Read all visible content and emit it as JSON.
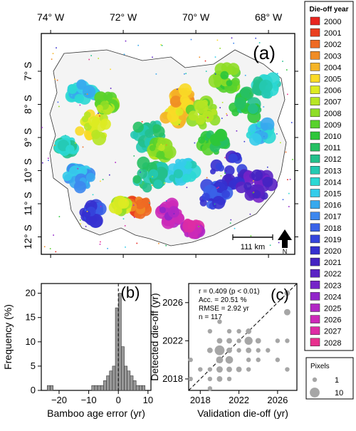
{
  "map": {
    "panel_label": "(a)",
    "lon_ticks": [
      {
        "label": "74° W",
        "lon": -74
      },
      {
        "label": "72° W",
        "lon": -72
      },
      {
        "label": "70° W",
        "lon": -70
      },
      {
        "label": "68° W",
        "lon": -68
      }
    ],
    "lat_ticks": [
      {
        "label": "7° S",
        "lat": -7
      },
      {
        "label": "8° S",
        "lat": -8
      },
      {
        "label": "9° S",
        "lat": -9
      },
      {
        "label": "10° S",
        "lat": -10
      },
      {
        "label": "11° S",
        "lat": -11
      },
      {
        "label": "12° S",
        "lat": -12
      }
    ],
    "scale_bar_label": "111 km",
    "north_label": "N"
  },
  "legend": {
    "title": "Die-off year",
    "entries": [
      {
        "label": "2000",
        "color": "#e8251f"
      },
      {
        "label": "2001",
        "color": "#ea3f1f"
      },
      {
        "label": "2002",
        "color": "#ee6a23"
      },
      {
        "label": "2003",
        "color": "#f08c25"
      },
      {
        "label": "2004",
        "color": "#f5b427"
      },
      {
        "label": "2005",
        "color": "#fada27"
      },
      {
        "label": "2006",
        "color": "#ddeb22"
      },
      {
        "label": "2007",
        "color": "#b7e624"
      },
      {
        "label": "2008",
        "color": "#8fdd26"
      },
      {
        "label": "2009",
        "color": "#58d22c"
      },
      {
        "label": "2010",
        "color": "#2ec63a"
      },
      {
        "label": "2011",
        "color": "#26c063"
      },
      {
        "label": "2012",
        "color": "#24c08c"
      },
      {
        "label": "2013",
        "color": "#25c9b2"
      },
      {
        "label": "2014",
        "color": "#2bd8d4"
      },
      {
        "label": "2015",
        "color": "#35ccea"
      },
      {
        "label": "2016",
        "color": "#37a9ee"
      },
      {
        "label": "2017",
        "color": "#3d87ee"
      },
      {
        "label": "2018",
        "color": "#3a63e8"
      },
      {
        "label": "2019",
        "color": "#3545dc"
      },
      {
        "label": "2020",
        "color": "#3530cf"
      },
      {
        "label": "2021",
        "color": "#4423c2"
      },
      {
        "label": "2022",
        "color": "#5a22c4"
      },
      {
        "label": "2023",
        "color": "#7524c8"
      },
      {
        "label": "2024",
        "color": "#9225ca"
      },
      {
        "label": "2025",
        "color": "#b127c4"
      },
      {
        "label": "2026",
        "color": "#cc2ab8"
      },
      {
        "label": "2027",
        "color": "#de2ca4"
      },
      {
        "label": "2028",
        "color": "#e8308e"
      }
    ]
  },
  "chart_data": [
    {
      "type": "bar",
      "panel": "(b)",
      "xlabel": "Bamboo age error (yr)",
      "ylabel": "Frequency (%)",
      "xlim": [
        -26,
        11
      ],
      "ylim": [
        0,
        22
      ],
      "x_ticks": [
        -20,
        -10,
        0,
        10
      ],
      "x_tick_labels": [
        "−20",
        "−10",
        "0",
        "10"
      ],
      "y_ticks": [
        0,
        5,
        10,
        15,
        20
      ],
      "reference_line_x": 0,
      "bins": [
        {
          "x": -23.5,
          "value": 1
        },
        {
          "x": -22.5,
          "value": 1
        },
        {
          "x": -8.5,
          "value": 1
        },
        {
          "x": -7.5,
          "value": 1
        },
        {
          "x": -6.5,
          "value": 1
        },
        {
          "x": -5.5,
          "value": 1
        },
        {
          "x": -4.5,
          "value": 2
        },
        {
          "x": -3.5,
          "value": 3
        },
        {
          "x": -2.5,
          "value": 4
        },
        {
          "x": -1.5,
          "value": 5
        },
        {
          "x": -0.5,
          "value": 17
        },
        {
          "x": 0.5,
          "value": 20
        },
        {
          "x": 1.5,
          "value": 9
        },
        {
          "x": 2.5,
          "value": 5
        },
        {
          "x": 3.5,
          "value": 4
        },
        {
          "x": 4.5,
          "value": 3
        },
        {
          "x": 5.5,
          "value": 2
        },
        {
          "x": 6.5,
          "value": 1
        },
        {
          "x": 7.5,
          "value": 1
        },
        {
          "x": 8.5,
          "value": 1
        }
      ]
    },
    {
      "type": "scatter",
      "panel": "(c)",
      "xlabel": "Validation die-off (yr)",
      "ylabel": "Detected die-off (yr)",
      "xlim": [
        2016.8,
        2028
      ],
      "ylim": [
        2016.8,
        2028
      ],
      "x_ticks": [
        2018,
        2022,
        2026
      ],
      "y_ticks": [
        2018,
        2022,
        2026
      ],
      "stats": [
        "r = 0.409 (p < 0.01)",
        "Acc. = 20.51 %",
        "RMSE = 2.92 yr",
        "n = 117"
      ],
      "one_to_one_line": true,
      "size_legend": {
        "title": "Pixels",
        "entries": [
          {
            "label": "1",
            "value": 1
          },
          {
            "label": "10",
            "value": 10
          }
        ]
      },
      "points": [
        {
          "x": 2017,
          "y": 2018,
          "n": 1
        },
        {
          "x": 2017,
          "y": 2020,
          "n": 1
        },
        {
          "x": 2018,
          "y": 2019,
          "n": 1
        },
        {
          "x": 2019,
          "y": 2017,
          "n": 1
        },
        {
          "x": 2019,
          "y": 2018,
          "n": 1
        },
        {
          "x": 2019,
          "y": 2019,
          "n": 1
        },
        {
          "x": 2019,
          "y": 2021,
          "n": 2
        },
        {
          "x": 2019,
          "y": 2023,
          "n": 1
        },
        {
          "x": 2020,
          "y": 2018,
          "n": 2
        },
        {
          "x": 2020,
          "y": 2019,
          "n": 3
        },
        {
          "x": 2020,
          "y": 2020,
          "n": 4
        },
        {
          "x": 2020,
          "y": 2021,
          "n": 10
        },
        {
          "x": 2020,
          "y": 2022,
          "n": 2
        },
        {
          "x": 2020,
          "y": 2024,
          "n": 1
        },
        {
          "x": 2021,
          "y": 2018,
          "n": 1
        },
        {
          "x": 2021,
          "y": 2019,
          "n": 2
        },
        {
          "x": 2021,
          "y": 2020,
          "n": 5
        },
        {
          "x": 2021,
          "y": 2021,
          "n": 2
        },
        {
          "x": 2021,
          "y": 2022,
          "n": 2
        },
        {
          "x": 2021,
          "y": 2023,
          "n": 1
        },
        {
          "x": 2022,
          "y": 2019,
          "n": 2
        },
        {
          "x": 2022,
          "y": 2021,
          "n": 1
        },
        {
          "x": 2022,
          "y": 2022,
          "n": 1
        },
        {
          "x": 2022,
          "y": 2023,
          "n": 1
        },
        {
          "x": 2023,
          "y": 2019,
          "n": 1
        },
        {
          "x": 2023,
          "y": 2020,
          "n": 1
        },
        {
          "x": 2023,
          "y": 2021,
          "n": 2
        },
        {
          "x": 2023,
          "y": 2022,
          "n": 6
        },
        {
          "x": 2023,
          "y": 2023,
          "n": 2
        },
        {
          "x": 2024,
          "y": 2020,
          "n": 1
        },
        {
          "x": 2024,
          "y": 2021,
          "n": 1
        },
        {
          "x": 2024,
          "y": 2022,
          "n": 2
        },
        {
          "x": 2025,
          "y": 2021,
          "n": 1
        },
        {
          "x": 2026,
          "y": 2020,
          "n": 1
        },
        {
          "x": 2026,
          "y": 2022,
          "n": 1
        },
        {
          "x": 2027,
          "y": 2019,
          "n": 1
        },
        {
          "x": 2027,
          "y": 2022,
          "n": 1
        },
        {
          "x": 2027,
          "y": 2025,
          "n": 3
        },
        {
          "x": 2027,
          "y": 2027,
          "n": 2
        }
      ]
    }
  ]
}
